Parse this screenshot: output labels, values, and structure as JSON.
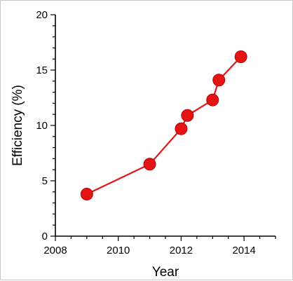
{
  "chart_data": {
    "type": "line",
    "title": "",
    "xlabel": "Year",
    "ylabel": "Efficiency (%)",
    "xlim": [
      2008,
      2015
    ],
    "ylim": [
      0,
      20
    ],
    "xticks": [
      2008,
      2010,
      2012,
      2014
    ],
    "yticks": [
      0,
      5,
      10,
      15,
      20
    ],
    "grid": false,
    "series": [
      {
        "x": [
          2009.0,
          2011.0,
          2012.0,
          2012.2,
          2013.0,
          2013.2,
          2013.9
        ],
        "y": [
          3.8,
          6.5,
          9.7,
          10.9,
          12.3,
          14.1,
          16.2
        ]
      }
    ],
    "colors": {
      "series": "#e41414",
      "axis": "#000000"
    }
  }
}
